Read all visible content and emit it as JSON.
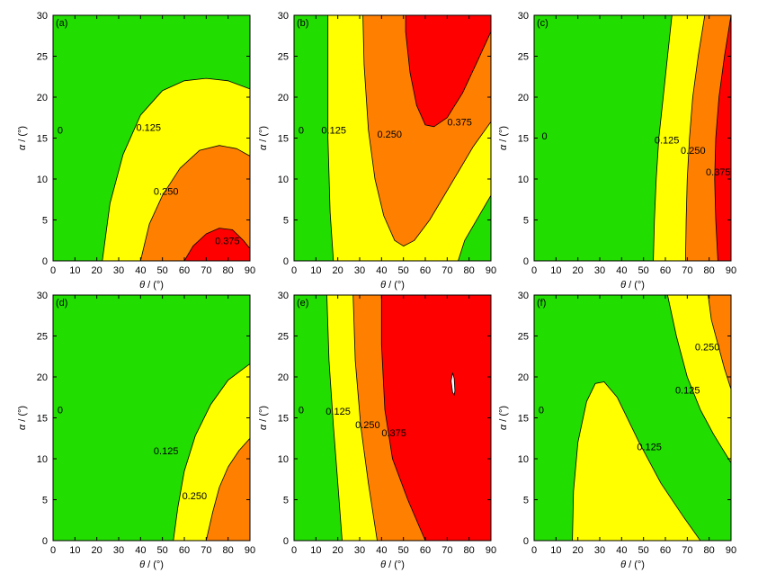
{
  "colors": {
    "level0": "#22dd00",
    "level1": "#ffff00",
    "level2": "#ff8000",
    "level3": "#ff0000",
    "hole": "#ffffff",
    "line": "#000000"
  },
  "axes_text": {
    "xlabel_sym": "θ",
    "xlabel_unit": " / (°)",
    "ylabel_sym": "α",
    "ylabel_unit": " / (°)"
  },
  "chart_data": [
    {
      "type": "contour",
      "panel_label": "(a)",
      "xlim": [
        0,
        90
      ],
      "ylim": [
        0,
        30
      ],
      "xticks": [
        "0",
        "10",
        "20",
        "30",
        "40",
        "50",
        "60",
        "70",
        "80",
        "90"
      ],
      "yticks": [
        "0",
        "5",
        "10",
        "15",
        "20",
        "25",
        "30"
      ],
      "regions": [
        {
          "level": 1,
          "points": [
            [
              22.5,
              0
            ],
            [
              26,
              7
            ],
            [
              32,
              13
            ],
            [
              40,
              17.8
            ],
            [
              50,
              20.8
            ],
            [
              60,
              22
            ],
            [
              70,
              22.3
            ],
            [
              80,
              22
            ],
            [
              90,
              21
            ],
            [
              90,
              0
            ]
          ]
        },
        {
          "level": 2,
          "points": [
            [
              40,
              0
            ],
            [
              44,
              4.5
            ],
            [
              50,
              8
            ],
            [
              58,
              11.3
            ],
            [
              67,
              13.5
            ],
            [
              76,
              14.1
            ],
            [
              84,
              13.7
            ],
            [
              90,
              12.8
            ],
            [
              90,
              0
            ]
          ]
        },
        {
          "level": 3,
          "points": [
            [
              60,
              0
            ],
            [
              64,
              1.8
            ],
            [
              70,
              3.3
            ],
            [
              76,
              4
            ],
            [
              82,
              3.8
            ],
            [
              87,
              2.5
            ],
            [
              90,
              1.5
            ],
            [
              90,
              0
            ]
          ]
        }
      ],
      "contour_labels": [
        {
          "text": "0",
          "x": 2,
          "y": 16
        },
        {
          "text": "0.125",
          "x": 38,
          "y": 16.3
        },
        {
          "text": "0.250",
          "x": 46,
          "y": 8.5
        },
        {
          "text": "0.375",
          "x": 74,
          "y": 2.5
        }
      ]
    },
    {
      "type": "contour",
      "panel_label": "(b)",
      "xlim": [
        0,
        90
      ],
      "ylim": [
        0,
        30
      ],
      "xticks": [
        "0",
        "10",
        "20",
        "30",
        "40",
        "50",
        "60",
        "70",
        "80",
        "90"
      ],
      "yticks": [
        "0",
        "5",
        "10",
        "15",
        "20",
        "25",
        "30"
      ],
      "regions": [
        {
          "level": 1,
          "points": [
            [
              15.5,
              30
            ],
            [
              15.5,
              15
            ],
            [
              16.5,
              6
            ],
            [
              18,
              0
            ],
            [
              75,
              0
            ],
            [
              78,
              2.5
            ],
            [
              90,
              8
            ],
            [
              90,
              30
            ]
          ]
        },
        {
          "level": 2,
          "points": [
            [
              31.5,
              30
            ],
            [
              32,
              24
            ],
            [
              34,
              16
            ],
            [
              37,
              10
            ],
            [
              41,
              5.5
            ],
            [
              46,
              2.5
            ],
            [
              50,
              1.8
            ],
            [
              55,
              2.5
            ],
            [
              62,
              5
            ],
            [
              72,
              9.5
            ],
            [
              82,
              14
            ],
            [
              90,
              17
            ],
            [
              90,
              30
            ]
          ]
        },
        {
          "level": 3,
          "points": [
            [
              51,
              30
            ],
            [
              51,
              28
            ],
            [
              53,
              23
            ],
            [
              56,
              19
            ],
            [
              60,
              16.6
            ],
            [
              64,
              16.4
            ],
            [
              70,
              17.5
            ],
            [
              77,
              20.5
            ],
            [
              84,
              24.5
            ],
            [
              90,
              28
            ],
            [
              90,
              30
            ]
          ]
        }
      ],
      "contour_labels": [
        {
          "text": "0",
          "x": 2,
          "y": 16
        },
        {
          "text": "0.125",
          "x": 12.5,
          "y": 16
        },
        {
          "text": "0.250",
          "x": 38,
          "y": 15.5
        },
        {
          "text": "0.375",
          "x": 70,
          "y": 17
        }
      ]
    },
    {
      "type": "contour",
      "panel_label": "(c)",
      "xlim": [
        0,
        90
      ],
      "ylim": [
        0,
        30
      ],
      "xticks": [
        "0",
        "10",
        "20",
        "30",
        "40",
        "50",
        "60",
        "70",
        "80",
        "90"
      ],
      "yticks": [
        "0",
        "5",
        "10",
        "15",
        "20",
        "25",
        "30"
      ],
      "regions": [
        {
          "level": 1,
          "points": [
            [
              63,
              30
            ],
            [
              61,
              25
            ],
            [
              59,
              20
            ],
            [
              57,
              15
            ],
            [
              55.8,
              10
            ],
            [
              55,
              5
            ],
            [
              54.5,
              0
            ],
            [
              90,
              0
            ],
            [
              90,
              30
            ]
          ]
        },
        {
          "level": 2,
          "points": [
            [
              78,
              30
            ],
            [
              75,
              25
            ],
            [
              72.5,
              20
            ],
            [
              71,
              15
            ],
            [
              70,
              10
            ],
            [
              69.5,
              5
            ],
            [
              69.2,
              0
            ],
            [
              90,
              0
            ],
            [
              90,
              30
            ]
          ]
        },
        {
          "level": 3,
          "points": [
            [
              90,
              30
            ],
            [
              87,
              25
            ],
            [
              84.5,
              20
            ],
            [
              83,
              15
            ],
            [
              82.5,
              10
            ],
            [
              83,
              5
            ],
            [
              84,
              0
            ],
            [
              90,
              0
            ]
          ]
        }
      ],
      "contour_labels": [
        {
          "text": "0",
          "x": 3.5,
          "y": 15.3
        },
        {
          "text": "0.125",
          "x": 55,
          "y": 14.8
        },
        {
          "text": "0.250",
          "x": 67,
          "y": 13.5
        },
        {
          "text": "0.375",
          "x": 78.5,
          "y": 10.9
        }
      ]
    },
    {
      "type": "contour",
      "panel_label": "(d)",
      "xlim": [
        0,
        90
      ],
      "ylim": [
        0,
        30
      ],
      "xticks": [
        "0",
        "10",
        "20",
        "30",
        "40",
        "50",
        "60",
        "70",
        "80",
        "90"
      ],
      "yticks": [
        "0",
        "5",
        "10",
        "15",
        "20",
        "25",
        "30"
      ],
      "regions": [
        {
          "level": 1,
          "points": [
            [
              55,
              0
            ],
            [
              57,
              4
            ],
            [
              60,
              8.5
            ],
            [
              65,
              12.8
            ],
            [
              72,
              16.6
            ],
            [
              80,
              19.6
            ],
            [
              90,
              21.6
            ],
            [
              90,
              0
            ]
          ]
        },
        {
          "level": 2,
          "points": [
            [
              70,
              0
            ],
            [
              73,
              3.5
            ],
            [
              76,
              6.5
            ],
            [
              80,
              9
            ],
            [
              85,
              11
            ],
            [
              90,
              12.5
            ],
            [
              90,
              0
            ]
          ]
        }
      ],
      "contour_labels": [
        {
          "text": "0",
          "x": 2,
          "y": 16
        },
        {
          "text": "0.125",
          "x": 46,
          "y": 11
        },
        {
          "text": "0.250",
          "x": 59,
          "y": 5.5
        }
      ]
    },
    {
      "type": "contour",
      "panel_label": "(e)",
      "xlim": [
        0,
        90
      ],
      "ylim": [
        0,
        30
      ],
      "xticks": [
        "0",
        "10",
        "20",
        "30",
        "40",
        "50",
        "60",
        "70",
        "80",
        "90"
      ],
      "yticks": [
        "0",
        "5",
        "10",
        "15",
        "20",
        "25",
        "30"
      ],
      "regions": [
        {
          "level": 1,
          "points": [
            [
              15,
              30
            ],
            [
              16,
              22
            ],
            [
              18,
              14
            ],
            [
              20,
              7
            ],
            [
              22,
              0
            ],
            [
              90,
              0
            ],
            [
              90,
              30
            ]
          ]
        },
        {
          "level": 2,
          "points": [
            [
              27,
              30
            ],
            [
              28,
              22
            ],
            [
              30.5,
              14
            ],
            [
              34,
              7
            ],
            [
              38,
              0
            ],
            [
              90,
              0
            ],
            [
              90,
              30
            ]
          ]
        },
        {
          "level": 3,
          "points": [
            [
              40,
              30
            ],
            [
              40,
              24
            ],
            [
              41.5,
              16
            ],
            [
              45,
              10
            ],
            [
              52,
              5
            ],
            [
              60,
              0
            ],
            [
              90,
              0
            ],
            [
              90,
              30
            ]
          ]
        }
      ],
      "holes": [
        {
          "points": [
            [
              72.5,
              20.5
            ],
            [
              73.2,
              19.8
            ],
            [
              73.5,
              18.3
            ],
            [
              73.2,
              17.8
            ],
            [
              72.5,
              18.1
            ],
            [
              71.8,
              19.5
            ]
          ]
        }
      ],
      "contour_labels": [
        {
          "text": "0",
          "x": 2,
          "y": 16
        },
        {
          "text": "0.125",
          "x": 14.5,
          "y": 15.8
        },
        {
          "text": "0.250",
          "x": 28,
          "y": 14.2
        },
        {
          "text": "0.375",
          "x": 40,
          "y": 13.2
        }
      ]
    },
    {
      "type": "contour",
      "panel_label": "(f)",
      "xlim": [
        0,
        90
      ],
      "ylim": [
        0,
        30
      ],
      "xticks": [
        "0",
        "10",
        "20",
        "30",
        "40",
        "50",
        "60",
        "70",
        "80",
        "90"
      ],
      "yticks": [
        "0",
        "5",
        "10",
        "15",
        "20",
        "25",
        "30"
      ],
      "regions": [
        {
          "level": 1,
          "points": [
            [
              17.5,
              0
            ],
            [
              18,
              6
            ],
            [
              20,
              12
            ],
            [
              24,
              17
            ],
            [
              28,
              19.2
            ],
            [
              32,
              19.4
            ],
            [
              38,
              17.5
            ],
            [
              48,
              12
            ],
            [
              58,
              7
            ],
            [
              68,
              3
            ],
            [
              76,
              0
            ]
          ]
        },
        {
          "level": 1,
          "points": [
            [
              61,
              30
            ],
            [
              65,
              25
            ],
            [
              70,
              20
            ],
            [
              76,
              16
            ],
            [
              82,
              13
            ],
            [
              90,
              9.5
            ],
            [
              90,
              30
            ]
          ]
        },
        {
          "level": 2,
          "points": [
            [
              79.5,
              30
            ],
            [
              81,
              27
            ],
            [
              84,
              24
            ],
            [
              87,
              21
            ],
            [
              90,
              18.5
            ],
            [
              90,
              30
            ]
          ]
        }
      ],
      "contour_labels": [
        {
          "text": "0",
          "x": 2,
          "y": 16
        },
        {
          "text": "0.125",
          "x": 47,
          "y": 11.5
        },
        {
          "text": "0.125",
          "x": 64.5,
          "y": 18.4
        },
        {
          "text": "0.250",
          "x": 73.5,
          "y": 23.7
        }
      ]
    }
  ]
}
